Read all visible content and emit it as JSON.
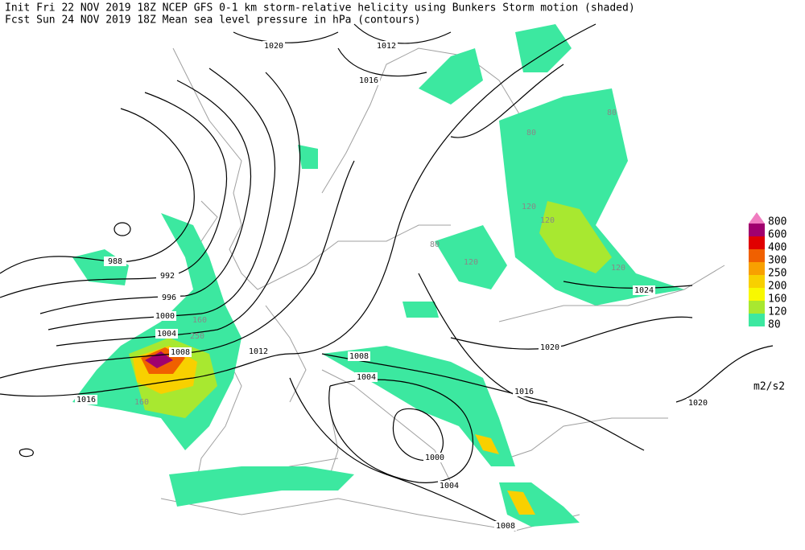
{
  "header": {
    "line1": "Init  Fri 22 NOV 2019 18Z  NCEP GFS 0-1 km storm-relative helicity using Bunkers Storm motion (shaded)",
    "line2": "Fcst Sun 24 NOV 2019 18Z  Mean sea level pressure in hPa (contours)"
  },
  "legend": {
    "levels": [
      {
        "label": "800",
        "color": "#f07cc0"
      },
      {
        "label": "600",
        "color": "#a0006e"
      },
      {
        "label": "400",
        "color": "#e00000"
      },
      {
        "label": "300",
        "color": "#f06000"
      },
      {
        "label": "250",
        "color": "#f8a000"
      },
      {
        "label": "200",
        "color": "#f8d000"
      },
      {
        "label": "160",
        "color": "#f8f800"
      },
      {
        "label": "120",
        "color": "#a8e830"
      },
      {
        "label": "80",
        "color": "#3ce8a0"
      }
    ],
    "unit": "m2/s2"
  },
  "contour_labels": [
    "1020",
    "1012",
    "1016",
    "988",
    "992",
    "996",
    "1000",
    "1004",
    "1008",
    "1012",
    "1016",
    "1008",
    "1004",
    "1000",
    "1004",
    "1008",
    "1016",
    "1020",
    "1024",
    "1020"
  ],
  "shading_labels": [
    "120",
    "120",
    "120",
    "120",
    "160",
    "250",
    "160",
    "80",
    "80",
    "80"
  ]
}
